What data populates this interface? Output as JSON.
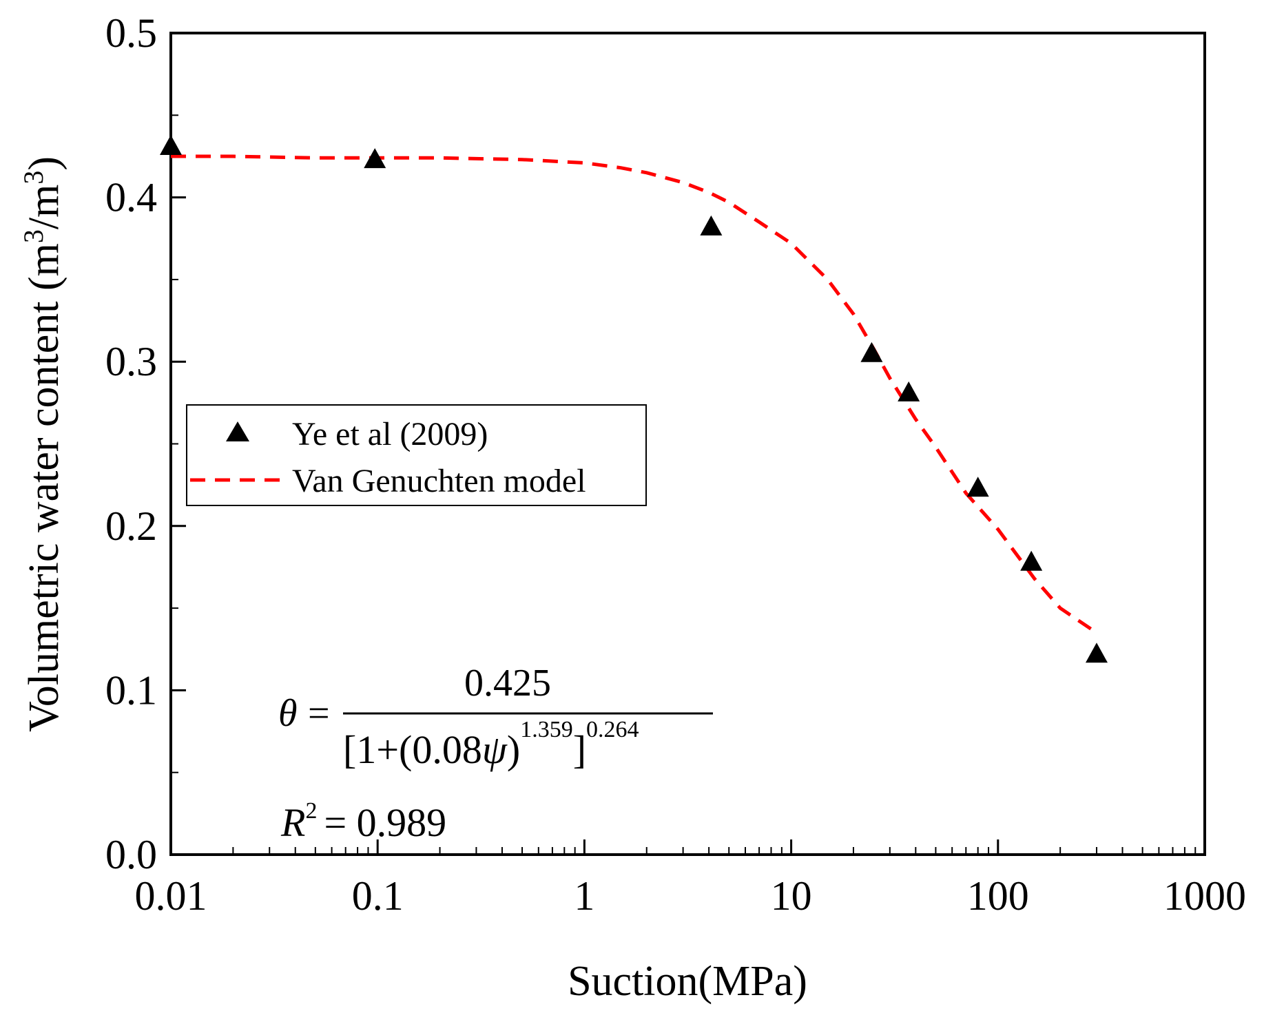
{
  "chart_data": {
    "type": "scatter",
    "xlabel": "Suction(MPa)",
    "ylabel_text": "Volumetric water content (m",
    "ylabel_sup1": "3",
    "ylabel_mid": "/m",
    "ylabel_sup2": "3",
    "ylabel_end": ")",
    "x_scale": "log",
    "xlim": [
      0.01,
      1000
    ],
    "ylim": [
      0.0,
      0.5
    ],
    "x_ticks": [
      0.01,
      0.1,
      1,
      10,
      100,
      1000
    ],
    "x_tick_labels": [
      "0.01",
      "0.1",
      "1",
      "10",
      "100",
      "1000"
    ],
    "y_ticks": [
      0.0,
      0.1,
      0.2,
      0.3,
      0.4,
      0.5
    ],
    "y_tick_labels": [
      "0.0",
      "0.1",
      "0.2",
      "0.3",
      "0.4",
      "0.5"
    ],
    "grid": false,
    "legend_position": "center-left",
    "series": [
      {
        "name": "Ye et al (2009)",
        "kind": "scatter",
        "marker": "triangle",
        "color": "#000000",
        "x": [
          0.01,
          0.097,
          4.1,
          24.5,
          37,
          80,
          145,
          300
        ],
        "y": [
          0.43,
          0.422,
          0.381,
          0.304,
          0.28,
          0.222,
          0.177,
          0.121
        ]
      },
      {
        "name": "Van Genuchten model",
        "kind": "line",
        "style": "dashed",
        "color": "#ff0000",
        "x": [
          0.01,
          0.02,
          0.05,
          0.1,
          0.2,
          0.5,
          1,
          1.5,
          2,
          3,
          4,
          5,
          7,
          10,
          15,
          20,
          25,
          30,
          40,
          50,
          70,
          100,
          150,
          200,
          300
        ],
        "y": [
          0.425,
          0.425,
          0.424,
          0.424,
          0.424,
          0.423,
          0.421,
          0.418,
          0.415,
          0.409,
          0.403,
          0.397,
          0.385,
          0.372,
          0.35,
          0.329,
          0.308,
          0.29,
          0.265,
          0.248,
          0.22,
          0.198,
          0.168,
          0.15,
          0.135
        ]
      }
    ],
    "annotations": {
      "eq_lhs": "θ",
      "eq_equals": "=",
      "eq_numerator": "0.425",
      "eq_den_open": "[1+(0.08",
      "eq_den_psi": "ψ",
      "eq_den_close": ")",
      "eq_exp_inner": "1.359",
      "eq_den_bracket": "]",
      "eq_exp_outer": "0.264",
      "r2_symbol": "R",
      "r2_sup": "2",
      "r2_value": "= 0.989"
    }
  }
}
